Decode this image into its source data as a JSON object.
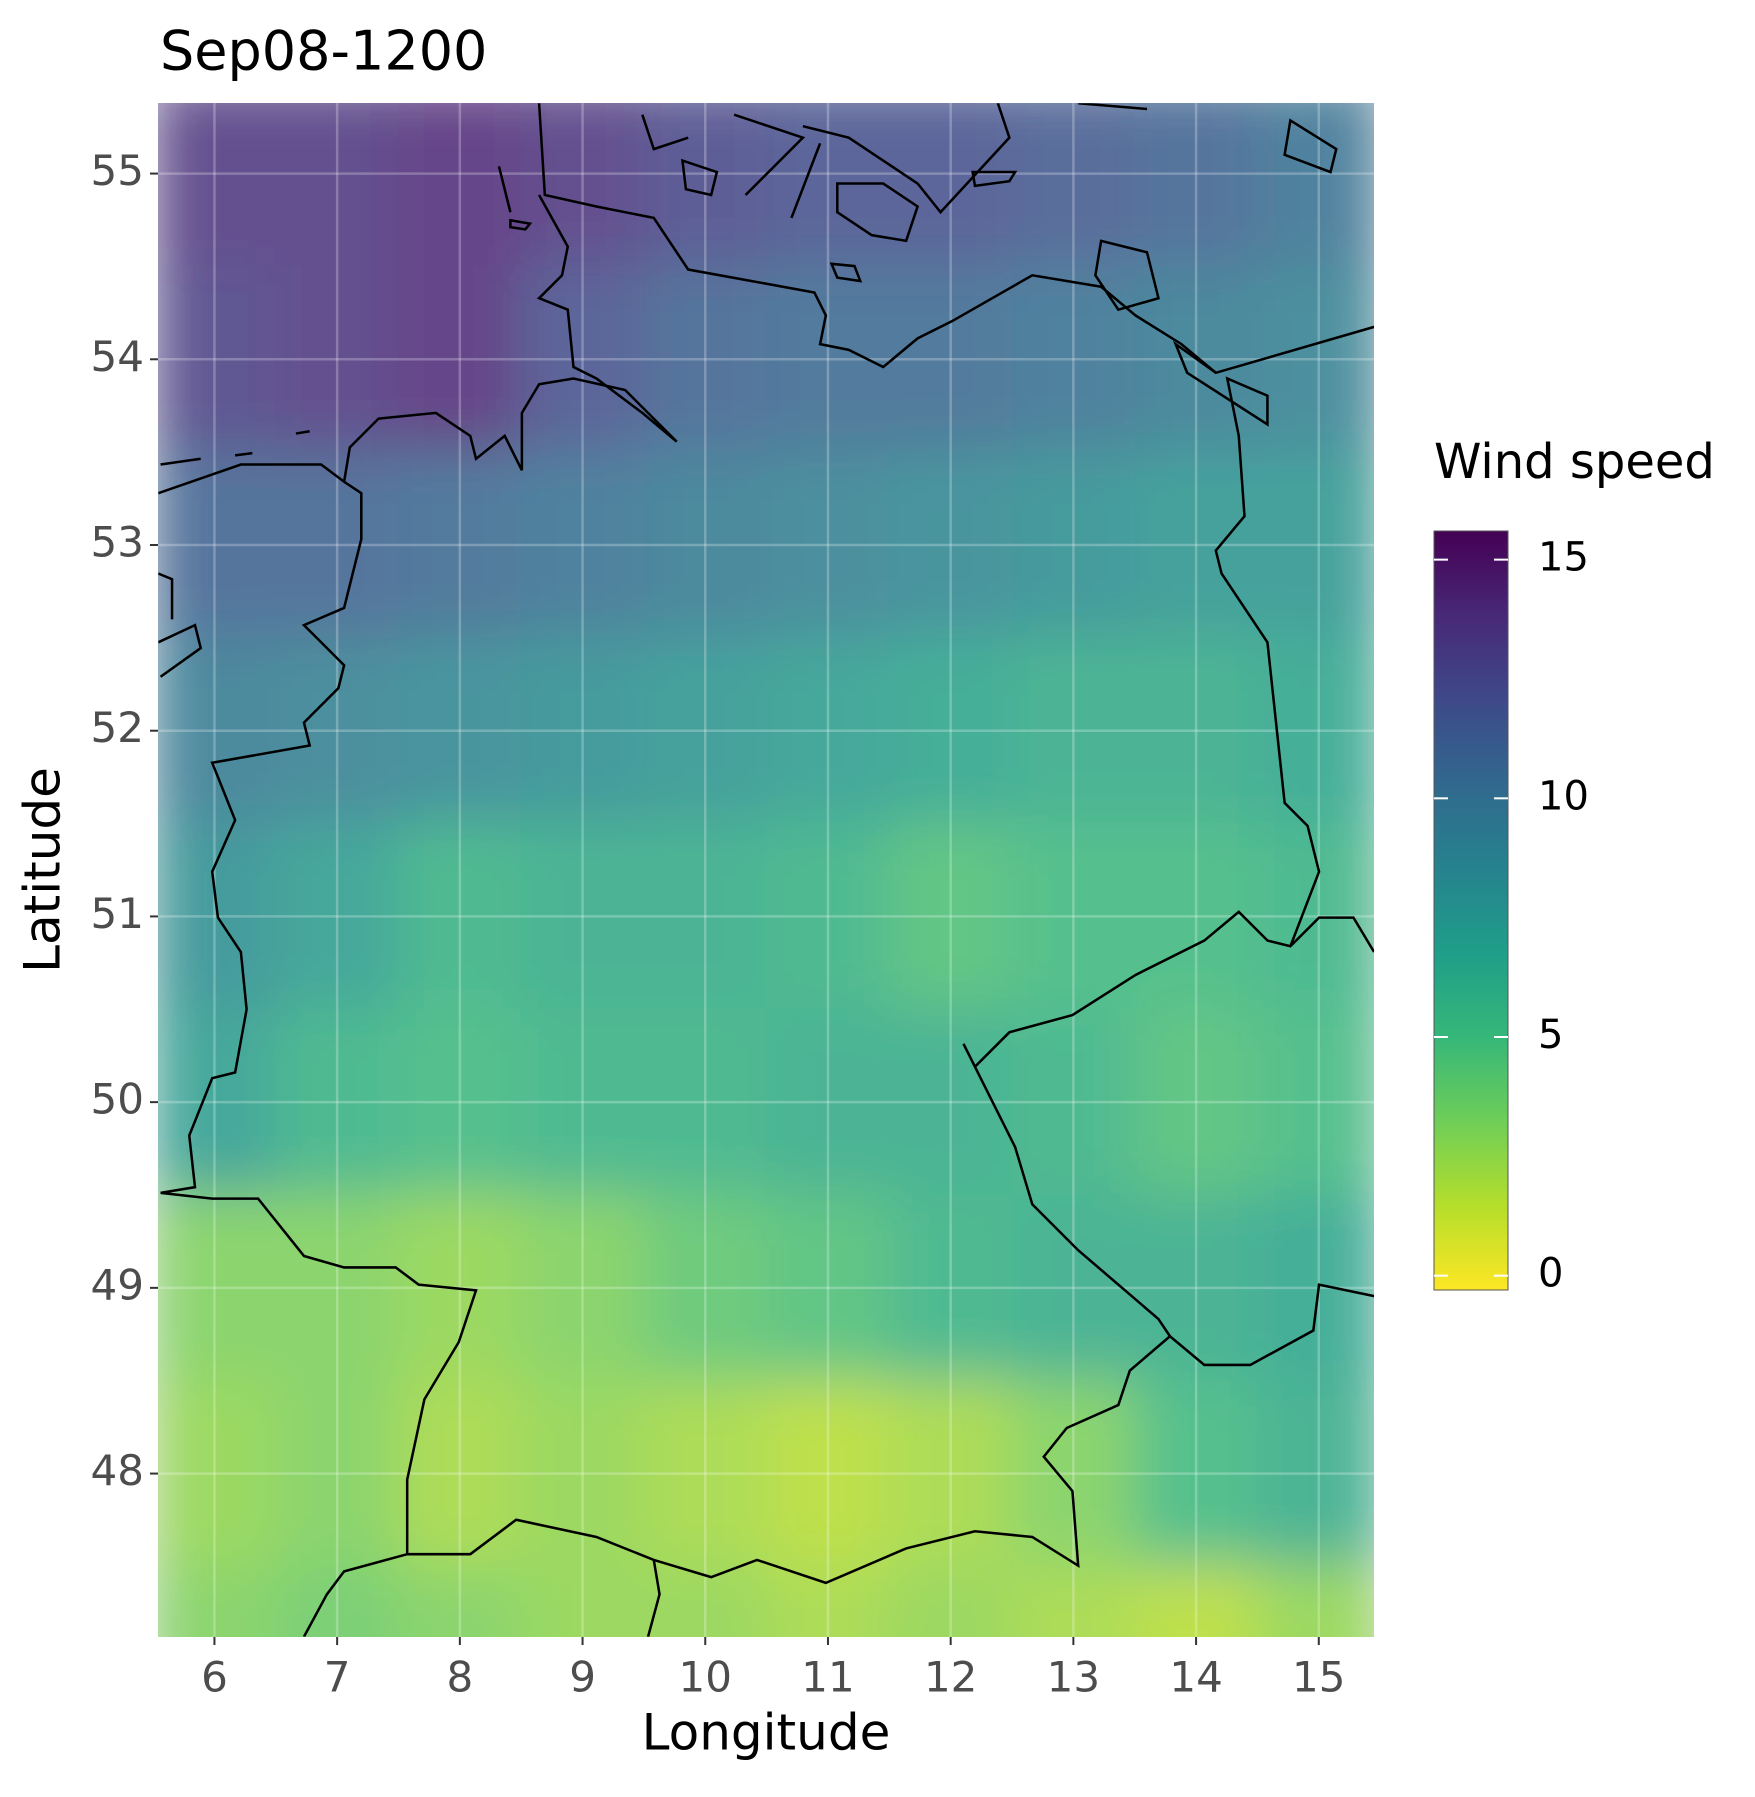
{
  "chart_data": {
    "type": "heatmap",
    "title": "Sep08-1200",
    "x_label": "Longitude",
    "y_label": "Latitude",
    "x": [
      6,
      7,
      8,
      9,
      10,
      11,
      12,
      13,
      14,
      15
    ],
    "y": [
      55,
      54,
      53,
      52,
      51,
      50,
      49,
      48,
      47
    ],
    "values": [
      [
        13.5,
        13.5,
        14,
        13.5,
        12.5,
        12,
        12,
        11.5,
        11,
        10
      ],
      [
        13,
        13.5,
        14,
        12,
        11,
        10.5,
        10.5,
        10,
        9.5,
        9
      ],
      [
        11,
        11,
        10.5,
        10,
        9.5,
        9,
        8.5,
        8,
        7.5,
        7.5
      ],
      [
        9.5,
        9,
        8.5,
        8,
        7.5,
        7,
        6.5,
        6,
        6,
        6.5
      ],
      [
        8,
        7,
        5.5,
        6,
        6,
        5.5,
        4.5,
        5,
        5,
        5.5
      ],
      [
        7,
        5.5,
        5,
        5.5,
        5.5,
        6,
        6,
        5.5,
        4.5,
        5
      ],
      [
        3,
        3,
        2.5,
        3,
        4,
        4.5,
        5.5,
        6,
        6,
        6.5
      ],
      [
        2.5,
        3,
        2,
        2.5,
        2,
        1.5,
        2,
        3,
        5,
        6
      ],
      [
        3,
        3.5,
        3,
        2.5,
        2.5,
        2,
        2.5,
        2,
        1.5,
        2.5
      ]
    ],
    "xlim": [
      5.54,
      15.45
    ],
    "ylim": [
      47.12,
      55.38
    ],
    "xticks": [
      6,
      7,
      8,
      9,
      10,
      11,
      12,
      13,
      14,
      15
    ],
    "yticks": [
      48,
      49,
      50,
      51,
      52,
      53,
      54,
      55
    ],
    "grid": true,
    "legend_title": "Wind speed",
    "zlim": [
      -0.3,
      15.6
    ],
    "zticks": [
      0,
      5,
      10,
      15
    ],
    "colors": [
      "#fde725",
      "#b5de2b",
      "#6ece58",
      "#35b779",
      "#1f9e89",
      "#26828e",
      "#31688e",
      "#3e4989",
      "#482878",
      "#440154"
    ]
  }
}
